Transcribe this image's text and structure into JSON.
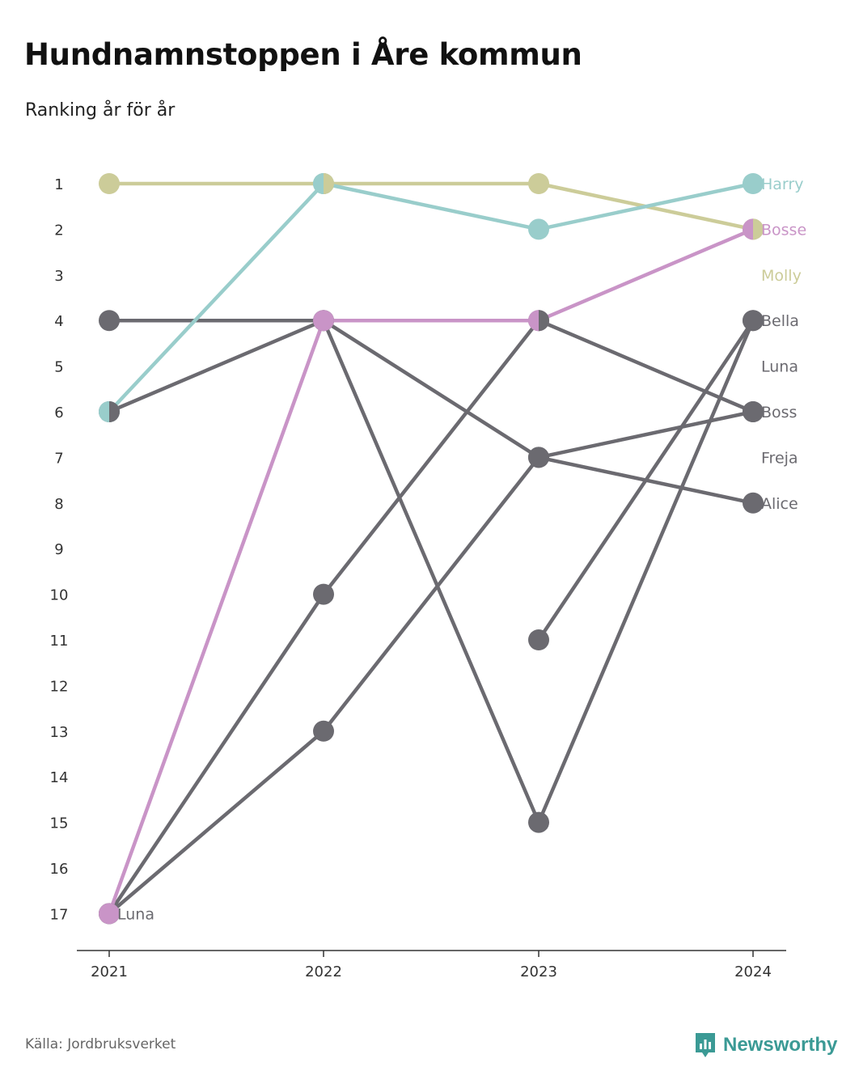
{
  "title": "Hundnamnstoppen i Åre kommun",
  "subtitle": "Ranking år för år",
  "source": "Källa: Jordbruksverket",
  "brand": "Newsworthy",
  "colors": {
    "highlight_teal": "#99cdcb",
    "highlight_olive": "#cccc99",
    "highlight_pink": "#c994c7",
    "dark_gray": "#6b6a70",
    "axis": "#333333",
    "brand": "#3b9a95"
  },
  "chart_data": {
    "type": "line",
    "x": [
      "2021",
      "2022",
      "2023",
      "2024"
    ],
    "y_ticks": [
      "1",
      "2",
      "3",
      "4",
      "5",
      "6",
      "7",
      "8",
      "9",
      "10",
      "11",
      "12",
      "13",
      "14",
      "15",
      "16",
      "17"
    ],
    "ylim": [
      1,
      17
    ],
    "y_inverted": true,
    "series": [
      {
        "name": "Boss",
        "values": [
          6,
          4,
          7,
          6
        ],
        "color": "#6b6a70"
      },
      {
        "name": "Alice",
        "values": [
          17,
          13,
          7,
          8
        ],
        "color": "#6b6a70"
      },
      {
        "name": "Freja",
        "values": [
          4,
          4,
          15,
          4
        ],
        "color": "#6b6a70"
      },
      {
        "name": "Luna",
        "values": [
          null,
          null,
          11,
          4
        ],
        "color": "#6b6a70"
      },
      {
        "name": "Bella",
        "values": [
          17,
          10,
          4,
          6
        ],
        "color": "#6b6a70"
      },
      {
        "name": "Bosse",
        "values": [
          17,
          4,
          4,
          2
        ],
        "color": "#c994c7"
      },
      {
        "name": "Molly",
        "values": [
          1,
          1,
          1,
          2
        ],
        "color": "#cccc99"
      },
      {
        "name": "Harry",
        "values": [
          6,
          1,
          2,
          1
        ],
        "color": "#99cdcb"
      }
    ],
    "right_labels": [
      {
        "text": "Harry",
        "rank": 1,
        "color": "#99cdcb"
      },
      {
        "text": "Bosse",
        "rank": 2,
        "color": "#c994c7"
      },
      {
        "text": "Molly",
        "rank": 3,
        "color": "#cccc99"
      },
      {
        "text": "Bella",
        "rank": 4,
        "color": "#6b6a70"
      },
      {
        "text": "Luna",
        "rank": 5,
        "color": "#6b6a70"
      },
      {
        "text": "Boss",
        "rank": 6,
        "color": "#6b6a70"
      },
      {
        "text": "Freja",
        "rank": 7,
        "color": "#6b6a70"
      },
      {
        "text": "Alice",
        "rank": 8,
        "color": "#6b6a70"
      }
    ],
    "inline_labels": [
      {
        "text": "Luna",
        "year": "2021",
        "rank": 17,
        "color": "#6b6a70"
      }
    ],
    "split_markers": [
      {
        "year": "2021",
        "rank": 6,
        "left": "#99cdcb",
        "right": "#6b6a70"
      },
      {
        "year": "2022",
        "rank": 1,
        "left": "#99cdcb",
        "right": "#cccc99"
      },
      {
        "year": "2023",
        "rank": 4,
        "left": "#c994c7",
        "right": "#6b6a70"
      },
      {
        "year": "2024",
        "rank": 2,
        "left": "#c994c7",
        "right": "#cccc99"
      }
    ]
  }
}
